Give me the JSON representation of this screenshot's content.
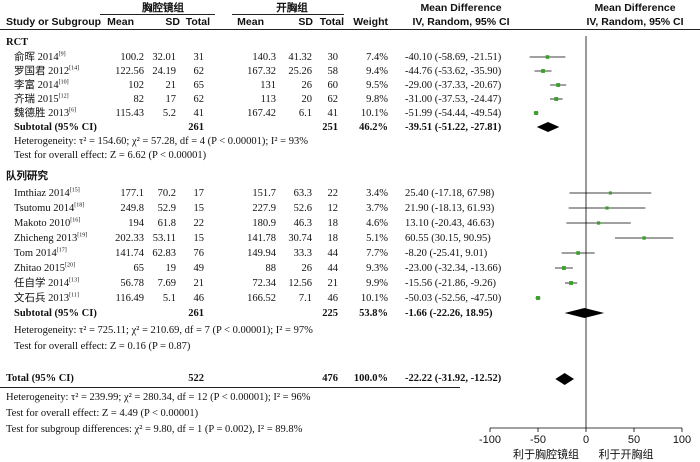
{
  "header": {
    "group1_name": "胸腔镜组",
    "group2_name": "开胸组",
    "col_study": "Study or Subgroup",
    "col_mean1": "Mean",
    "col_sd1": "SD",
    "col_total1": "Total",
    "col_mean2": "Mean",
    "col_sd2": "SD",
    "col_total2": "Total",
    "col_weight": "Weight",
    "col_md_text_1": "Mean Difference",
    "col_md_text_2": "IV, Random, 95% CI",
    "col_md_plot_1": "Mean Difference",
    "col_md_plot_2": "IV, Random, 95% CI"
  },
  "subgroups": [
    {
      "name": "RCT",
      "studies": [
        {
          "study": "俞晖 2014",
          "ref": "[9]",
          "mean1": "100.2",
          "sd1": "32.01",
          "n1": "31",
          "mean2": "140.3",
          "sd2": "41.32",
          "n2": "30",
          "weight": "7.4%",
          "ci_text": "-40.10 (-58.69, -21.51)"
        },
        {
          "study": "罗国君 2012",
          "ref": "[14]",
          "mean1": "122.56",
          "sd1": "24.19",
          "n1": "62",
          "mean2": "167.32",
          "sd2": "25.26",
          "n2": "58",
          "weight": "9.4%",
          "ci_text": "-44.76 (-53.62, -35.90)"
        },
        {
          "study": "李富 2014",
          "ref": "[10]",
          "mean1": "102",
          "sd1": "21",
          "n1": "65",
          "mean2": "131",
          "sd2": "26",
          "n2": "60",
          "weight": "9.5%",
          "ci_text": "-29.00 (-37.33, -20.67)"
        },
        {
          "study": "齐瑞 2015",
          "ref": "[12]",
          "mean1": "82",
          "sd1": "17",
          "n1": "62",
          "mean2": "113",
          "sd2": "20",
          "n2": "62",
          "weight": "9.8%",
          "ci_text": "-31.00 (-37.53, -24.47)"
        },
        {
          "study": "魏德胜 2013",
          "ref": "[6]",
          "mean1": "115.43",
          "sd1": "5.2",
          "n1": "41",
          "mean2": "167.42",
          "sd2": "6.1",
          "n2": "41",
          "weight": "10.1%",
          "ci_text": "-51.99 (-54.44, -49.54)"
        }
      ],
      "subtotal": {
        "label": "Subtotal (95% CI)",
        "n1": "261",
        "n2": "251",
        "weight": "46.2%",
        "ci_text": "-39.51 (-51.22, -27.81)"
      },
      "heterogeneity": "Heterogeneity: τ² = 154.60; χ² = 57.28, df = 4 (P < 0.00001); I² = 93%",
      "overall_effect": "Test for overall effect: Z = 6.62 (P < 0.00001)"
    },
    {
      "name": "队列研究",
      "studies": [
        {
          "study": "Imthiaz 2014",
          "ref": "[15]",
          "mean1": "177.1",
          "sd1": "70.2",
          "n1": "17",
          "mean2": "151.7",
          "sd2": "63.3",
          "n2": "22",
          "weight": "3.4%",
          "ci_text": "25.40 (-17.18, 67.98)"
        },
        {
          "study": "Tsutomu 2014",
          "ref": "[18]",
          "mean1": "249.8",
          "sd1": "52.9",
          "n1": "15",
          "mean2": "227.9",
          "sd2": "52.6",
          "n2": "12",
          "weight": "3.7%",
          "ci_text": "21.90 (-18.13, 61.93)"
        },
        {
          "study": "Makoto 2010",
          "ref": "[16]",
          "mean1": "194",
          "sd1": "61.8",
          "n1": "22",
          "mean2": "180.9",
          "sd2": "46.3",
          "n2": "18",
          "weight": "4.6%",
          "ci_text": "13.10 (-20.43, 46.63)"
        },
        {
          "study": "Zhicheng 2013",
          "ref": "[19]",
          "mean1": "202.33",
          "sd1": "53.11",
          "n1": "15",
          "mean2": "141.78",
          "sd2": "30.74",
          "n2": "18",
          "weight": "5.1%",
          "ci_text": "60.55 (30.15, 90.95)"
        },
        {
          "study": "Tom 2014",
          "ref": "[17]",
          "mean1": "141.74",
          "sd1": "62.83",
          "n1": "76",
          "mean2": "149.94",
          "sd2": "33.3",
          "n2": "44",
          "weight": "7.7%",
          "ci_text": "-8.20 (-25.41, 9.01)"
        },
        {
          "study": "Zhitao 2015",
          "ref": "[20]",
          "mean1": "65",
          "sd1": "19",
          "n1": "49",
          "mean2": "88",
          "sd2": "26",
          "n2": "44",
          "weight": "9.3%",
          "ci_text": "-23.00 (-32.34, -13.66)"
        },
        {
          "study": "任自学 2014",
          "ref": "[13]",
          "mean1": "56.78",
          "sd1": "7.69",
          "n1": "21",
          "mean2": "72.34",
          "sd2": "12.56",
          "n2": "21",
          "weight": "9.9%",
          "ci_text": "-15.56 (-21.86, -9.26)"
        },
        {
          "study": "文石兵 2013",
          "ref": "[11]",
          "mean1": "116.49",
          "sd1": "5.1",
          "n1": "46",
          "mean2": "166.52",
          "sd2": "7.1",
          "n2": "46",
          "weight": "10.1%",
          "ci_text": "-50.03 (-52.56, -47.50)"
        }
      ],
      "subtotal": {
        "label": "Subtotal (95% CI)",
        "n1": "261",
        "n2": "225",
        "weight": "53.8%",
        "ci_text": "-1.66 (-22.26, 18.95)"
      },
      "heterogeneity": "Heterogeneity: τ² = 725.11; χ² = 210.69, df = 7 (P < 0.00001); I² = 97%",
      "overall_effect": "Test for overall effect: Z = 0.16 (P = 0.87)"
    }
  ],
  "total": {
    "label": "Total (95% CI)",
    "n1": "522",
    "n2": "476",
    "weight": "100.0%",
    "ci_text": "-22.22 (-31.92, -12.52)"
  },
  "footer": {
    "heterogeneity": "Heterogeneity: τ² = 239.99; χ² = 280.34, df = 12 (P < 0.00001); I² = 96%",
    "overall_effect": "Test for overall effect: Z = 4.49 (P < 0.00001)",
    "subgroup_diff": "Test for subgroup differences: χ² = 9.80, df = 1 (P = 0.002), I² = 89.8%"
  },
  "colors": {
    "study_marker": "#3aa02a",
    "diamond": "#000000",
    "line": "#000000"
  },
  "chart_data": {
    "type": "forest",
    "axis": {
      "min": -100,
      "max": 100,
      "ticks": [
        -100,
        -50,
        0,
        50,
        100
      ]
    },
    "axis_labels": {
      "left": "利于胸腔镜组",
      "right": "利于开胸组"
    },
    "subgroups": [
      {
        "name": "RCT",
        "studies": [
          {
            "study": "俞晖 2014",
            "md": -40.1,
            "lo": -58.69,
            "hi": -21.51,
            "weight": 7.4
          },
          {
            "study": "罗国君 2012",
            "md": -44.76,
            "lo": -53.62,
            "hi": -35.9,
            "weight": 9.4
          },
          {
            "study": "李富 2014",
            "md": -29.0,
            "lo": -37.33,
            "hi": -20.67,
            "weight": 9.5
          },
          {
            "study": "齐瑞 2015",
            "md": -31.0,
            "lo": -37.53,
            "hi": -24.47,
            "weight": 9.8
          },
          {
            "study": "魏德胜 2013",
            "md": -51.99,
            "lo": -54.44,
            "hi": -49.54,
            "weight": 10.1
          }
        ],
        "subtotal": {
          "md": -39.51,
          "lo": -51.22,
          "hi": -27.81,
          "weight": 46.2
        }
      },
      {
        "name": "队列研究",
        "studies": [
          {
            "study": "Imthiaz 2014",
            "md": 25.4,
            "lo": -17.18,
            "hi": 67.98,
            "weight": 3.4
          },
          {
            "study": "Tsutomu 2014",
            "md": 21.9,
            "lo": -18.13,
            "hi": 61.93,
            "weight": 3.7
          },
          {
            "study": "Makoto 2010",
            "md": 13.1,
            "lo": -20.43,
            "hi": 46.63,
            "weight": 4.6
          },
          {
            "study": "Zhicheng 2013",
            "md": 60.55,
            "lo": 30.15,
            "hi": 90.95,
            "weight": 5.1
          },
          {
            "study": "Tom 2014",
            "md": -8.2,
            "lo": -25.41,
            "hi": 9.01,
            "weight": 7.7
          },
          {
            "study": "Zhitao 2015",
            "md": -23.0,
            "lo": -32.34,
            "hi": -13.66,
            "weight": 9.3
          },
          {
            "study": "任自学 2014",
            "md": -15.56,
            "lo": -21.86,
            "hi": -9.26,
            "weight": 9.9
          },
          {
            "study": "文石兵 2013",
            "md": -50.03,
            "lo": -52.56,
            "hi": -47.5,
            "weight": 10.1
          }
        ],
        "subtotal": {
          "md": -1.66,
          "lo": -22.26,
          "hi": 18.95,
          "weight": 53.8
        }
      }
    ],
    "total": {
      "md": -22.22,
      "lo": -31.92,
      "hi": -12.52,
      "weight": 100.0
    }
  }
}
